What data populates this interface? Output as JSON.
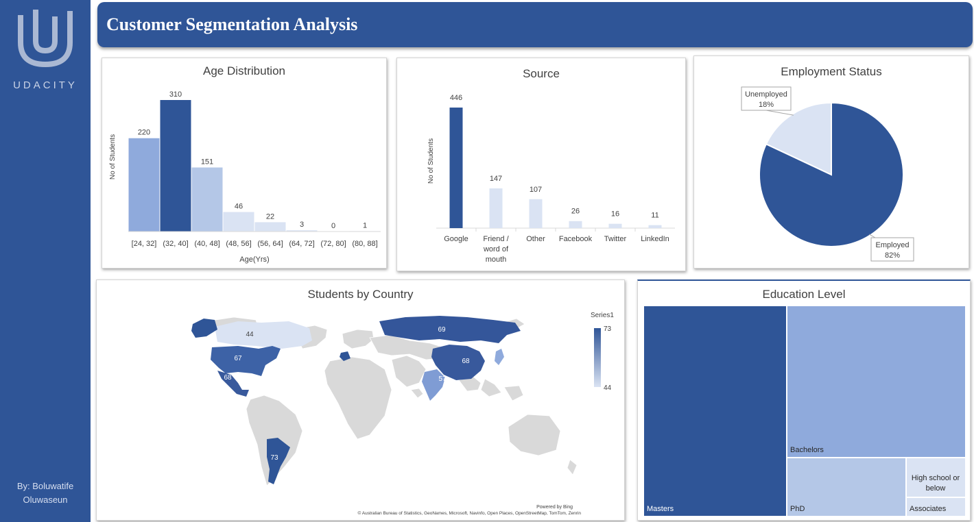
{
  "brand": {
    "name": "UDACITY",
    "author_line1": "By: Boluwatife",
    "author_line2": "Oluwaseun"
  },
  "header": {
    "title": "Customer Segmentation Analysis"
  },
  "colors": {
    "dark": "#2f5597",
    "mid": "#8faadc",
    "light": "#b4c7e7",
    "lighter": "#dae3f3",
    "map_grey": "#d9d9d9"
  },
  "chart_data": [
    {
      "id": "age",
      "type": "bar",
      "title": "Age Distribution",
      "xlabel": "Age(Yrs)",
      "ylabel": "No of Students",
      "categories": [
        "[24, 32]",
        "(32, 40]",
        "(40, 48]",
        "(48, 56]",
        "(56, 64]",
        "(64, 72]",
        "(72, 80]",
        "(80, 88]"
      ],
      "values": [
        220,
        310,
        151,
        46,
        22,
        3,
        0,
        1
      ],
      "ylim": [
        0,
        310
      ],
      "grid": false
    },
    {
      "id": "source",
      "type": "bar",
      "title": "Source",
      "ylabel": "No of Students",
      "categories": [
        "Google",
        "Friend / word of mouth",
        "Other",
        "Facebook",
        "Twitter",
        "LinkedIn"
      ],
      "values": [
        446,
        147,
        107,
        26,
        16,
        11
      ],
      "ylim": [
        0,
        446
      ],
      "grid": false
    },
    {
      "id": "employment",
      "type": "pie",
      "title": "Employment Status",
      "labels": [
        "Employed",
        "Unemployed"
      ],
      "values": [
        82,
        18
      ],
      "display": [
        "82%",
        "18%"
      ]
    },
    {
      "id": "country",
      "type": "heatmap",
      "title": "Students by Country",
      "legend_title": "Series1",
      "legend_range": [
        44,
        73
      ],
      "labels": [
        "44",
        "67",
        "68",
        "69",
        "68",
        "57",
        "73"
      ],
      "values": [
        44,
        67,
        68,
        69,
        68,
        57,
        73
      ],
      "credit1": "Powered by Bing",
      "credit2": "© Australian Bureau of Statistics, GeoNames, Microsoft, Navinfo, Open Places, OpenStreetMap, TomTom, Zenrin"
    },
    {
      "id": "education",
      "type": "treemap",
      "title": "Education Level",
      "categories": [
        "Masters",
        "Bachelors",
        "PhD",
        "High school or below",
        "Associates"
      ]
    }
  ]
}
